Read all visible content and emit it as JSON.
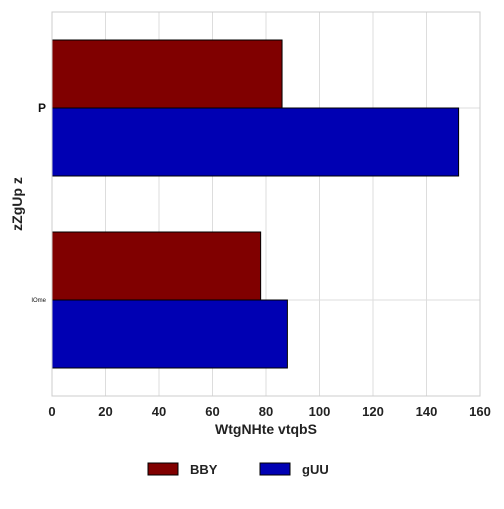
{
  "chart_data": {
    "type": "bar",
    "orientation": "horizontal",
    "categories": [
      "P",
      "IOme"
    ],
    "series": [
      {
        "name": "BBY",
        "color": "#800000",
        "values": [
          86,
          78
        ]
      },
      {
        "name": "gUU",
        "color": "#0000b3",
        "values": [
          152,
          88
        ]
      }
    ],
    "xlabel": "WtgNHte  vtqbS",
    "ylabel": "zZgUp z",
    "xlim": [
      0,
      160
    ],
    "xticks": [
      0,
      20,
      40,
      60,
      80,
      100,
      120,
      140,
      160
    ],
    "grid": true,
    "legend_position": "bottom-center"
  }
}
